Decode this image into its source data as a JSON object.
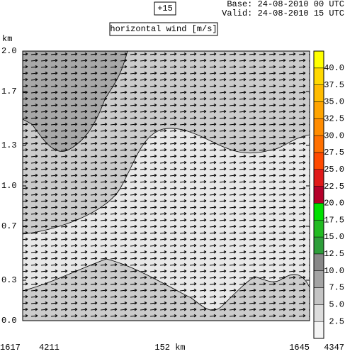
{
  "chart_data": {
    "type": "cross-section",
    "step": "+15",
    "base": "Base: 24-08-2010  00 UTC",
    "valid": "Valid: 24-08-2010  15 UTC",
    "title": "horizontal wind [m/s]",
    "y_label": "km",
    "ylim": [
      0,
      2
    ],
    "yticks": [
      {
        "value": 0,
        "label": "0.0"
      },
      0.3,
      0.7,
      {
        "value": 1,
        "label": "1.0"
      },
      1.3,
      1.7,
      {
        "value": 2,
        "label": "2.0"
      }
    ],
    "x_labels": [
      "1617",
      "4211",
      "152 km",
      "1645",
      "4347"
    ],
    "colorbar": {
      "clim": [
        0,
        42.5
      ],
      "ticks": [
        2.5,
        {
          "value": 5,
          "label": "5.0"
        },
        7.5,
        {
          "value": 10,
          "label": "10.0"
        },
        12.5,
        {
          "value": 15,
          "label": "15.0"
        },
        17.5,
        {
          "value": 20,
          "label": "20.0"
        },
        22.5,
        {
          "value": 25,
          "label": "25.0"
        },
        27.5,
        {
          "value": 30,
          "label": "30.0"
        },
        32.5,
        {
          "value": 35,
          "label": "35.0"
        },
        37.5,
        {
          "value": 40,
          "label": "40.0"
        }
      ],
      "colors": [
        "#f4f4f4",
        "#dcdcdc",
        "#c4c4c4",
        "#a4a4a4",
        "#888888",
        "#2e9e3a",
        "#22bb22",
        "#00e000",
        "#b4002a",
        "#e01a1a",
        "#ff4a00",
        "#ff7000",
        "#ff8c00",
        "#ffa400",
        "#ffbc00",
        "#ffd800",
        "#ffff00"
      ]
    }
  }
}
